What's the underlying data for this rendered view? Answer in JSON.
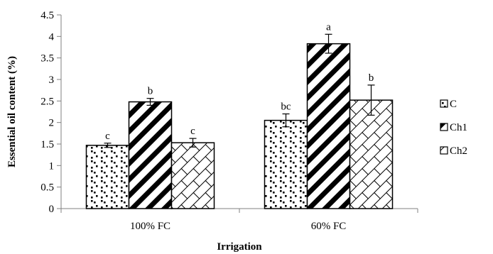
{
  "chart_data": {
    "type": "bar",
    "categories": [
      "100% FC",
      "60% FC"
    ],
    "series": [
      {
        "name": "C",
        "values": [
          1.47,
          2.05
        ],
        "errors": [
          0.05,
          0.15
        ],
        "letters": [
          "c",
          "bc"
        ],
        "pattern": "dots"
      },
      {
        "name": "Ch1",
        "values": [
          2.48,
          3.83
        ],
        "errors": [
          0.08,
          0.22
        ],
        "letters": [
          "b",
          "a"
        ],
        "pattern": "diagonal"
      },
      {
        "name": "Ch2",
        "values": [
          1.53,
          2.52
        ],
        "errors": [
          0.1,
          0.35
        ],
        "letters": [
          "c",
          "b"
        ],
        "pattern": "brick"
      }
    ],
    "xlabel": "Irrigation",
    "ylabel": "Essential oil content (%)",
    "ylim": [
      0,
      4.5
    ],
    "yticks": [
      "0",
      "0.5",
      "1",
      "1.5",
      "2",
      "2.5",
      "3",
      "3.5",
      "4",
      "4.5"
    ],
    "grid": false,
    "legend_position": "right"
  }
}
